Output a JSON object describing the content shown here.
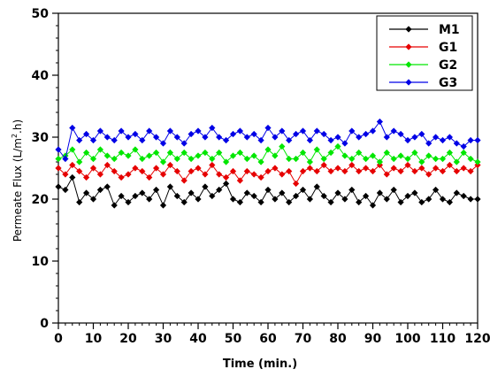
{
  "chart_data": {
    "type": "line",
    "xlabel": "Time (min.)",
    "ylabel_prefix": "Permeate Flux (L/m",
    "ylabel_sup": "2",
    "ylabel_suffix": ".h)",
    "xlim": [
      0,
      120
    ],
    "ylim": [
      0,
      50
    ],
    "xticks": [
      0,
      10,
      20,
      30,
      40,
      50,
      60,
      70,
      80,
      90,
      100,
      110,
      120
    ],
    "yticks": [
      0,
      10,
      20,
      30,
      40,
      50
    ],
    "legend_position": "top-right",
    "series": [
      {
        "name": "M1",
        "color": "#000000",
        "x": [
          0,
          2,
          4,
          6,
          8,
          10,
          12,
          14,
          16,
          18,
          20,
          22,
          24,
          26,
          28,
          30,
          32,
          34,
          36,
          38,
          40,
          42,
          44,
          46,
          48,
          50,
          52,
          54,
          56,
          58,
          60,
          62,
          64,
          66,
          68,
          70,
          72,
          74,
          76,
          78,
          80,
          82,
          84,
          86,
          88,
          90,
          92,
          94,
          96,
          98,
          100,
          102,
          104,
          106,
          108,
          110,
          112,
          114,
          116,
          118,
          120
        ],
        "y": [
          22.0,
          21.5,
          23.5,
          19.5,
          21.0,
          20.0,
          21.5,
          22.0,
          19.0,
          20.5,
          19.5,
          20.5,
          21.0,
          20.0,
          21.5,
          19.0,
          22.0,
          20.5,
          19.5,
          21.0,
          20.0,
          22.0,
          20.5,
          21.5,
          22.5,
          20.0,
          19.5,
          21.0,
          20.5,
          19.5,
          21.5,
          20.0,
          21.0,
          19.5,
          20.5,
          21.5,
          20.0,
          22.0,
          20.5,
          19.5,
          21.0,
          20.0,
          21.5,
          19.5,
          20.5,
          19.0,
          21.0,
          20.0,
          21.5,
          19.5,
          20.5,
          21.0,
          19.5,
          20.0,
          21.5,
          20.0,
          19.5,
          21.0,
          20.5,
          20.0,
          20.0
        ]
      },
      {
        "name": "G1",
        "color": "#e60000",
        "x": [
          0,
          2,
          4,
          6,
          8,
          10,
          12,
          14,
          16,
          18,
          20,
          22,
          24,
          26,
          28,
          30,
          32,
          34,
          36,
          38,
          40,
          42,
          44,
          46,
          48,
          50,
          52,
          54,
          56,
          58,
          60,
          62,
          64,
          66,
          68,
          70,
          72,
          74,
          76,
          78,
          80,
          82,
          84,
          86,
          88,
          90,
          92,
          94,
          96,
          98,
          100,
          102,
          104,
          106,
          108,
          110,
          112,
          114,
          116,
          118,
          120
        ],
        "y": [
          25.0,
          24.0,
          25.5,
          24.5,
          23.5,
          25.0,
          24.0,
          25.5,
          24.5,
          23.5,
          24.0,
          25.0,
          24.5,
          23.5,
          25.0,
          24.0,
          25.5,
          24.5,
          23.0,
          24.5,
          25.0,
          24.0,
          25.5,
          24.0,
          23.5,
          24.5,
          23.0,
          24.5,
          24.0,
          23.5,
          24.5,
          25.0,
          24.0,
          24.5,
          22.5,
          24.5,
          25.0,
          24.5,
          25.5,
          24.5,
          25.0,
          24.5,
          25.5,
          24.5,
          25.0,
          24.5,
          25.5,
          24.0,
          25.0,
          24.5,
          25.5,
          24.5,
          25.0,
          24.0,
          25.0,
          24.5,
          25.5,
          24.5,
          25.0,
          24.5,
          25.5
        ]
      },
      {
        "name": "G2",
        "color": "#00e600",
        "x": [
          0,
          2,
          4,
          6,
          8,
          10,
          12,
          14,
          16,
          18,
          20,
          22,
          24,
          26,
          28,
          30,
          32,
          34,
          36,
          38,
          40,
          42,
          44,
          46,
          48,
          50,
          52,
          54,
          56,
          58,
          60,
          62,
          64,
          66,
          68,
          70,
          72,
          74,
          76,
          78,
          80,
          82,
          84,
          86,
          88,
          90,
          92,
          94,
          96,
          98,
          100,
          102,
          104,
          106,
          108,
          110,
          112,
          114,
          116,
          118,
          120
        ],
        "y": [
          26.5,
          27.0,
          28.0,
          26.0,
          27.5,
          26.5,
          28.0,
          27.0,
          26.5,
          27.5,
          27.0,
          28.0,
          26.5,
          27.0,
          27.5,
          26.0,
          27.5,
          26.5,
          27.5,
          26.5,
          27.0,
          27.5,
          26.5,
          27.5,
          26.0,
          27.0,
          27.5,
          26.5,
          27.0,
          26.0,
          28.0,
          27.0,
          28.5,
          26.5,
          26.5,
          27.5,
          26.0,
          28.0,
          26.5,
          27.5,
          28.5,
          27.0,
          26.5,
          27.5,
          26.5,
          27.0,
          26.0,
          27.5,
          26.5,
          27.0,
          26.5,
          27.5,
          26.0,
          27.0,
          26.5,
          26.5,
          27.5,
          26.0,
          27.5,
          26.5,
          26.0
        ]
      },
      {
        "name": "G3",
        "color": "#0000e6",
        "x": [
          0,
          2,
          4,
          6,
          8,
          10,
          12,
          14,
          16,
          18,
          20,
          22,
          24,
          26,
          28,
          30,
          32,
          34,
          36,
          38,
          40,
          42,
          44,
          46,
          48,
          50,
          52,
          54,
          56,
          58,
          60,
          62,
          64,
          66,
          68,
          70,
          72,
          74,
          76,
          78,
          80,
          82,
          84,
          86,
          88,
          90,
          92,
          94,
          96,
          98,
          100,
          102,
          104,
          106,
          108,
          110,
          112,
          114,
          116,
          118,
          120
        ],
        "y": [
          28.0,
          26.5,
          31.5,
          29.5,
          30.5,
          29.5,
          31.0,
          30.0,
          29.5,
          31.0,
          30.0,
          30.5,
          29.5,
          31.0,
          30.0,
          29.0,
          31.0,
          30.0,
          29.0,
          30.5,
          31.0,
          30.0,
          31.5,
          30.0,
          29.5,
          30.5,
          31.0,
          30.0,
          30.5,
          29.5,
          31.5,
          30.0,
          31.0,
          29.5,
          30.5,
          31.0,
          29.5,
          31.0,
          30.5,
          29.5,
          30.0,
          29.0,
          31.0,
          30.0,
          30.5,
          31.0,
          32.5,
          30.0,
          31.0,
          30.5,
          29.5,
          30.0,
          30.5,
          29.0,
          30.0,
          29.5,
          30.0,
          29.0,
          28.5,
          29.5,
          29.5
        ]
      }
    ]
  }
}
